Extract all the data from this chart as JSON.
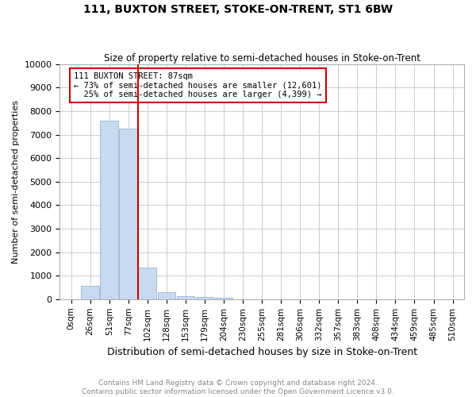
{
  "title": "111, BUXTON STREET, STOKE-ON-TRENT, ST1 6BW",
  "subtitle": "Size of property relative to semi-detached houses in Stoke-on-Trent",
  "xlabel": "Distribution of semi-detached houses by size in Stoke-on-Trent",
  "ylabel": "Number of semi-detached properties",
  "footer": "Contains HM Land Registry data © Crown copyright and database right 2024.\nContains public sector information licensed under the Open Government Licence v3.0.",
  "bar_labels": [
    "0sqm",
    "26sqm",
    "51sqm",
    "77sqm",
    "102sqm",
    "128sqm",
    "153sqm",
    "179sqm",
    "204sqm",
    "230sqm",
    "255sqm",
    "281sqm",
    "306sqm",
    "332sqm",
    "357sqm",
    "383sqm",
    "408sqm",
    "434sqm",
    "459sqm",
    "485sqm",
    "510sqm"
  ],
  "bar_values": [
    0,
    580,
    7600,
    7250,
    1350,
    300,
    130,
    80,
    60,
    0,
    0,
    0,
    0,
    0,
    0,
    0,
    0,
    0,
    0,
    0,
    0
  ],
  "property_bar_index": 3.5,
  "annotation_title": "111 BUXTON STREET: 87sqm",
  "annotation_line1": "← 73% of semi-detached houses are smaller (12,601)",
  "annotation_line2": "25% of semi-detached houses are larger (4,399) →",
  "bar_color": "#c8daf0",
  "bar_edge_color": "#a0bcd8",
  "vline_color": "#cc0000",
  "annotation_box_color": "#cc0000",
  "ylim": [
    0,
    10000
  ],
  "yticks": [
    0,
    1000,
    2000,
    3000,
    4000,
    5000,
    6000,
    7000,
    8000,
    9000,
    10000
  ]
}
